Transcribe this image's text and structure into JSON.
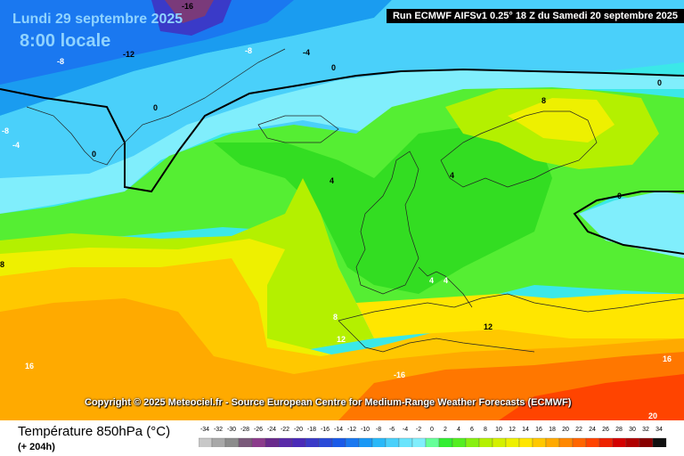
{
  "header": {
    "date": "Lundi 29 septembre 2025",
    "time": "8:00 locale",
    "run": "Run ECMWF AIFSv1 0.25° 18 Z du Samedi 20 septembre 2025"
  },
  "copyright": "Copyright © 2025 Meteociel.fr - Source European Centre for Medium-Range Weather Forecasts (ECMWF)",
  "footer": {
    "variable": "Température 850hPa (°C)",
    "forecast_hour": "(+ 204h)"
  },
  "legend": {
    "ticks": [
      "-34",
      "-32",
      "-30",
      "-28",
      "-26",
      "-24",
      "-22",
      "-20",
      "-18",
      "-16",
      "-14",
      "-12",
      "-10",
      "-8",
      "-6",
      "-4",
      "-2",
      "0",
      "2",
      "4",
      "6",
      "8",
      "10",
      "12",
      "14",
      "16",
      "18",
      "20",
      "22",
      "24",
      "26",
      "28",
      "30",
      "32",
      "34"
    ],
    "colors": [
      "#c8c8c8",
      "#a8a8a8",
      "#8c8c8c",
      "#7a5a7a",
      "#8c3c8c",
      "#6a2a8c",
      "#5a2aa8",
      "#4a2ab8",
      "#3a3ac8",
      "#2a4ad8",
      "#1a5ae8",
      "#1a78f0",
      "#1a98f5",
      "#2ab8f8",
      "#4ad0fa",
      "#6ae4fc",
      "#80eefc",
      "#66ff99",
      "#33ee33",
      "#55ee22",
      "#88f011",
      "#b4f000",
      "#d4f000",
      "#eef000",
      "#ffe600",
      "#ffc800",
      "#ffaa00",
      "#ff8800",
      "#ff6600",
      "#ff4400",
      "#ee2200",
      "#d40000",
      "#b00000",
      "#880000",
      "#111111"
    ]
  },
  "contour_labels": [
    "-16",
    "-8",
    "-12",
    "-8",
    "-4",
    "0",
    "-8",
    "0",
    "-4",
    "0",
    "0",
    "4",
    "8",
    "4",
    "0",
    "8",
    "4",
    "4",
    "8",
    "12",
    "12",
    "16",
    "-16",
    "16",
    "20"
  ]
}
